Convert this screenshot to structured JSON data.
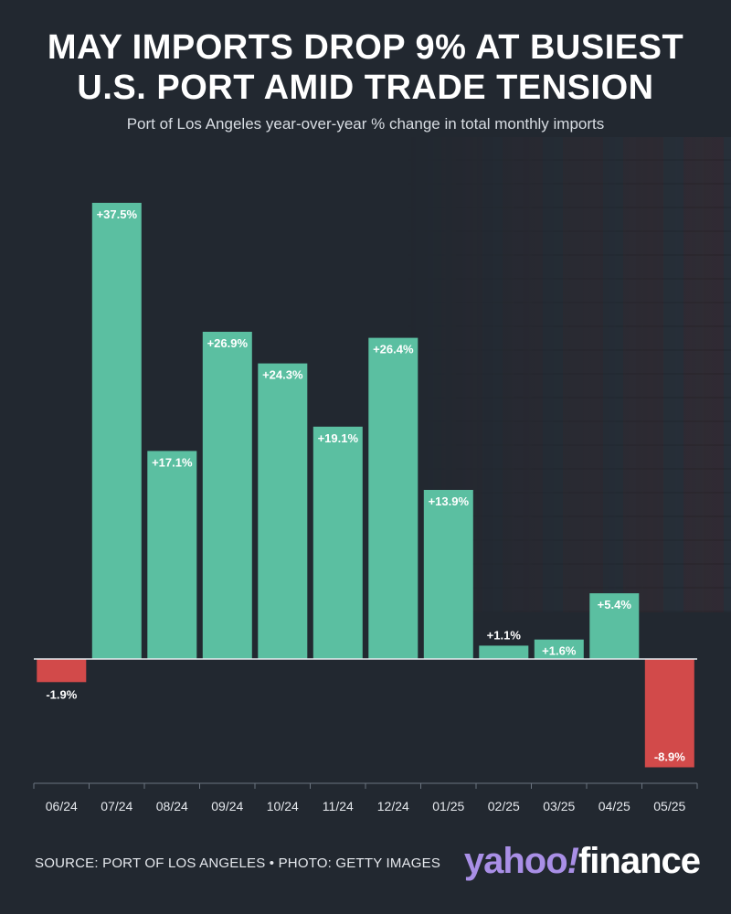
{
  "title_line1": "MAY IMPORTS DROP 9% AT BUSIEST",
  "title_line2": "U.S. PORT AMID TRADE TENSION",
  "subtitle": "Port of Los Angeles year-over-year % change in total monthly imports",
  "footer": {
    "source": "SOURCE: PORT OF LOS ANGELES • PHOTO: GETTY IMAGES",
    "logo_part1": "yahoo",
    "logo_bang": "!",
    "logo_part2": "finance"
  },
  "chart_data": {
    "type": "bar",
    "categories": [
      "06/24",
      "07/24",
      "08/24",
      "09/24",
      "10/24",
      "11/24",
      "12/24",
      "01/25",
      "02/25",
      "03/25",
      "04/25",
      "05/25"
    ],
    "values": [
      -1.9,
      37.5,
      17.1,
      26.9,
      24.3,
      19.1,
      26.4,
      13.9,
      1.1,
      1.6,
      5.4,
      -8.9
    ],
    "data_labels": [
      "-1.9%",
      "+37.5%",
      "+17.1%",
      "+26.9%",
      "+24.3%",
      "+19.1%",
      "+26.4%",
      "+13.9%",
      "+1.1%",
      "+1.6%",
      "+5.4%",
      "-8.9%"
    ],
    "ylim": [
      -10,
      37.5
    ],
    "grid": false,
    "colors": {
      "positive": "#5bbfa1",
      "negative": "#d24a4a",
      "zero_line": "#e8ecef",
      "axis": "#6b7480"
    }
  }
}
